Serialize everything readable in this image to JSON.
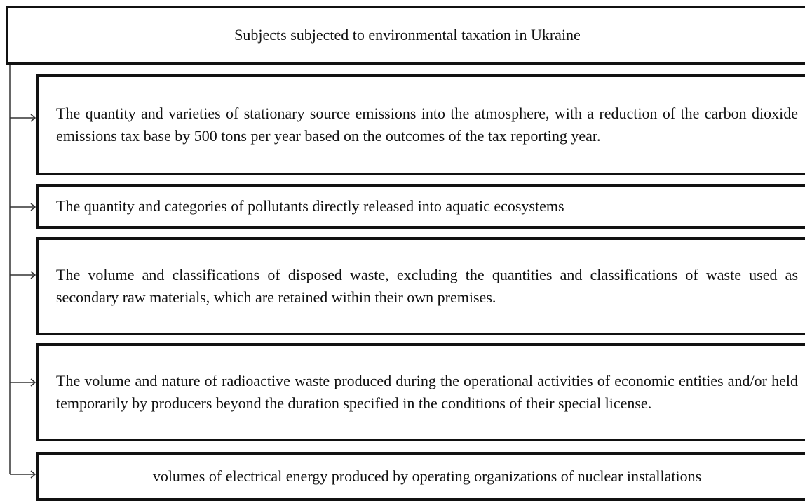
{
  "header": {
    "title": "Subjects subjected to environmental taxation in Ukraine"
  },
  "boxes": [
    {
      "text": "The quantity and varieties of stationary source emissions into the atmosphere, with a reduction of the carbon dioxide emissions tax base by 500 tons per year based on the outcomes of the tax reporting year."
    },
    {
      "text": "The quantity and categories of pollutants directly released into aquatic ecosystems"
    },
    {
      "text": "The volume and classifications of disposed waste, excluding the quantities and classifications of waste used as secondary raw materials, which are retained within their own premises."
    },
    {
      "text": "The volume and nature of radioactive waste produced during the operational activities of economic entities and/or held temporarily by producers beyond the duration specified in the conditions of their special license."
    },
    {
      "text": "volumes of electrical energy produced by operating organizations of nuclear installations"
    }
  ]
}
